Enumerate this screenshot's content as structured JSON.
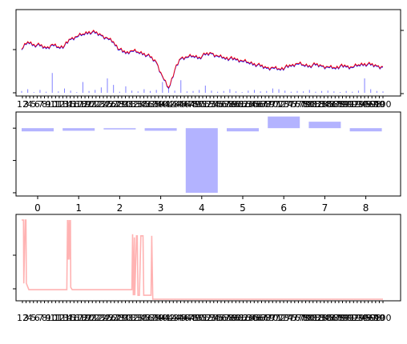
{
  "chart_data": [
    {
      "type": "line",
      "panel": "top",
      "series": [
        {
          "color": "#0000ff",
          "values": [
            0.62,
            0.74,
            0.7,
            0.68,
            0.64,
            0.7,
            0.66,
            0.68,
            0.78,
            0.82,
            0.86,
            0.9,
            0.88,
            0.84,
            0.8,
            0.74,
            0.62,
            0.56,
            0.6,
            0.58,
            0.56,
            0.5,
            0.42,
            0.2,
            0.02,
            0.3,
            0.48,
            0.5,
            0.52,
            0.5,
            0.54,
            0.56,
            0.52,
            0.5,
            0.48,
            0.46,
            0.44,
            0.42,
            0.4,
            0.36,
            0.33,
            0.34,
            0.32,
            0.34,
            0.36,
            0.4,
            0.38,
            0.37,
            0.38,
            0.36,
            0.35,
            0.34,
            0.36,
            0.35,
            0.34,
            0.38,
            0.4,
            0.38,
            0.36,
            0.35
          ]
        },
        {
          "color": "#ff0000",
          "values": [
            0.63,
            0.75,
            0.71,
            0.69,
            0.65,
            0.71,
            0.67,
            0.69,
            0.79,
            0.83,
            0.87,
            0.91,
            0.89,
            0.85,
            0.81,
            0.75,
            0.63,
            0.57,
            0.61,
            0.59,
            0.57,
            0.51,
            0.43,
            0.21,
            0.03,
            0.31,
            0.49,
            0.51,
            0.53,
            0.51,
            0.55,
            0.57,
            0.53,
            0.51,
            0.49,
            0.47,
            0.45,
            0.43,
            0.41,
            0.37,
            0.34,
            0.35,
            0.33,
            0.35,
            0.37,
            0.41,
            0.39,
            0.38,
            0.39,
            0.37,
            0.36,
            0.35,
            0.37,
            0.36,
            0.35,
            0.39,
            0.41,
            0.39,
            0.37,
            0.36
          ]
        }
      ],
      "volume": [
        0.05,
        0.1,
        0.02,
        0.08,
        0.03,
        0.55,
        0.04,
        0.12,
        0.06,
        0.02,
        0.3,
        0.05,
        0.08,
        0.15,
        0.4,
        0.22,
        0.03,
        0.18,
        0.06,
        0.04,
        0.1,
        0.05,
        0.08,
        0.3,
        0.12,
        0.06,
        0.35,
        0.04,
        0.05,
        0.08,
        0.2,
        0.06,
        0.03,
        0.05,
        0.1,
        0.04,
        0.02,
        0.06,
        0.08,
        0.04,
        0.05,
        0.12,
        0.1,
        0.06,
        0.03,
        0.05,
        0.04,
        0.08,
        0.03,
        0.05,
        0.06,
        0.04,
        0.02,
        0.05,
        0.03,
        0.06,
        0.4,
        0.1,
        0.05,
        0.04
      ],
      "volume_color": "#8080ff",
      "x_tick_labels": [
        "12",
        "3",
        "4",
        "5",
        "6",
        "7",
        "8",
        "9",
        "10",
        "11",
        "12",
        "13",
        "14",
        "15",
        "16",
        "17",
        "18",
        "19",
        "20",
        "21",
        "22",
        "23",
        "24",
        "25",
        "26",
        "27",
        "28",
        "29",
        "30",
        "31",
        "32",
        "33",
        "34",
        "35",
        "36",
        "37",
        "38",
        "39",
        "40",
        "41",
        "42",
        "43",
        "44",
        "45",
        "46",
        "47",
        "48",
        "49",
        "50",
        "51",
        "52",
        "53",
        "54",
        "55",
        "56",
        "57",
        "58",
        "59",
        "60",
        "61",
        "62",
        "63",
        "64",
        "65",
        "66",
        "67",
        "68",
        "69",
        "70",
        "71",
        "72",
        "73",
        "74",
        "75",
        "76",
        "77",
        "78",
        "79",
        "80",
        "81",
        "82",
        "83",
        "84",
        "85",
        "86",
        "87",
        "88",
        "89",
        "90",
        "91",
        "92",
        "93",
        "94",
        "95",
        "96",
        "97",
        "98",
        "99",
        "100"
      ]
    },
    {
      "type": "bar",
      "panel": "middle",
      "categories": [
        "0",
        "1",
        "2",
        "3",
        "4",
        "5",
        "6",
        "7",
        "8"
      ],
      "values": [
        -0.05,
        -0.04,
        -0.02,
        -0.04,
        -1.0,
        -0.05,
        0.18,
        0.1,
        -0.05
      ],
      "ylim": [
        -1.05,
        0.25
      ],
      "color": "#b3b3ff"
    },
    {
      "type": "line",
      "panel": "bottom",
      "color": "#ffb3b3",
      "points": [
        [
          0,
          1.0
        ],
        [
          0.5,
          1.0
        ],
        [
          0.6,
          0.2
        ],
        [
          1.0,
          1.0
        ],
        [
          1.2,
          1.0
        ],
        [
          1.3,
          0.2
        ],
        [
          2.0,
          0.12
        ],
        [
          11.5,
          0.12
        ],
        [
          12.5,
          0.12
        ],
        [
          12.7,
          1.0
        ],
        [
          12.9,
          0.5
        ],
        [
          13.1,
          1.0
        ],
        [
          13.3,
          0.5
        ],
        [
          13.5,
          1.0
        ],
        [
          13.6,
          0.15
        ],
        [
          14.0,
          0.12
        ],
        [
          30.5,
          0.12
        ],
        [
          30.7,
          0.82
        ],
        [
          30.9,
          0.05
        ],
        [
          31.2,
          0.78
        ],
        [
          31.3,
          0.05
        ],
        [
          31.8,
          0.8
        ],
        [
          32.0,
          0.8
        ],
        [
          32.2,
          0.05
        ],
        [
          32.6,
          0.05
        ],
        [
          33.0,
          0.8
        ],
        [
          33.6,
          0.8
        ],
        [
          33.8,
          0.05
        ],
        [
          35.8,
          0.05
        ],
        [
          36.0,
          0.8
        ],
        [
          36.3,
          0.0
        ],
        [
          100,
          0.0
        ]
      ]
    }
  ]
}
